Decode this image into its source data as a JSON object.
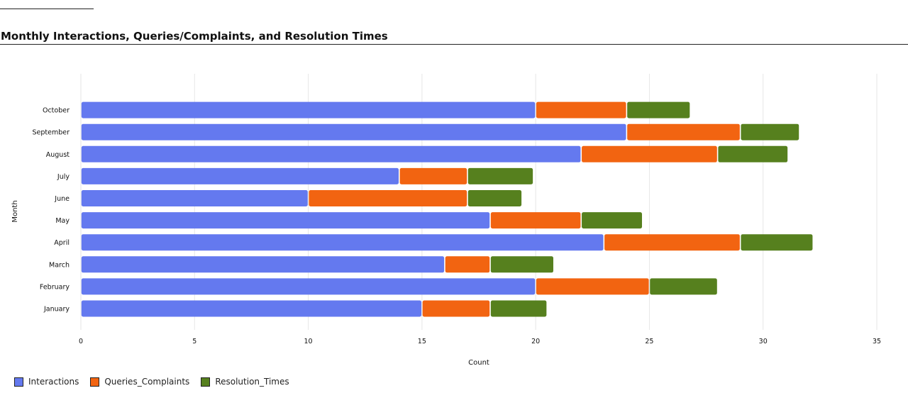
{
  "chart_title": "Monthly Interactions, Queries/Complaints, and Resolution Times",
  "chart_data": {
    "type": "bar",
    "orientation": "horizontal",
    "stacked": true,
    "title": "Monthly Interactions, Queries/Complaints, and Resolution Times",
    "xlabel": "Count",
    "ylabel": "Month",
    "xlim": [
      0,
      35
    ],
    "xticks": [
      "0",
      "5",
      "10",
      "15",
      "20",
      "25",
      "30",
      "35"
    ],
    "grid": true,
    "legend_position": "bottom-left",
    "categories": [
      "January",
      "February",
      "March",
      "April",
      "May",
      "June",
      "July",
      "August",
      "September",
      "October"
    ],
    "series": [
      {
        "name": "Interactions",
        "color": "#6479ef",
        "values": [
          15,
          20,
          16,
          23,
          18,
          10,
          14,
          22,
          24,
          20
        ]
      },
      {
        "name": "Queries_Complaints",
        "color": "#f26411",
        "values": [
          3,
          5,
          2,
          6,
          4,
          7,
          3,
          6,
          5,
          4
        ]
      },
      {
        "name": "Resolution_Times",
        "color": "#56801e",
        "values": [
          2.5,
          3,
          2.8,
          3.2,
          2.7,
          2.4,
          2.9,
          3.1,
          2.6,
          2.8
        ]
      }
    ]
  }
}
